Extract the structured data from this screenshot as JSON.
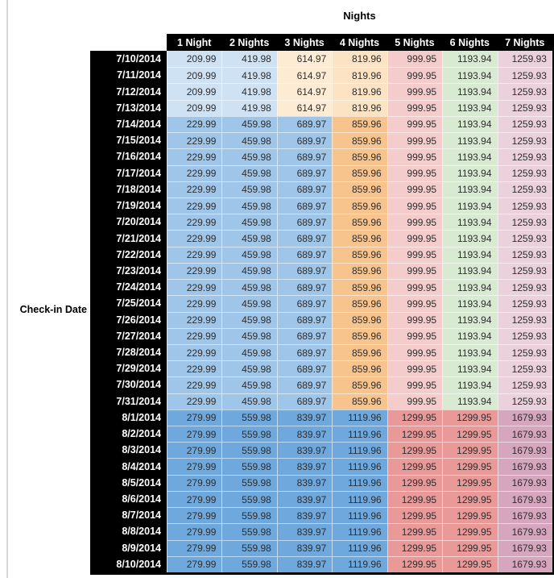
{
  "colors": {
    "header_bg": "#000000",
    "header_text": "#FFFFFF",
    "date_bg": "#000000",
    "date_text": "#FFFFFF",
    "cell_text": "#2E2E2E",
    "left_rule": "#D9D9D9",
    "bands": {
      "early_july": [
        "#CFE2F3",
        "#CFE2F3",
        "#FDEBD3",
        "#FBE3C4",
        "#F4CCCC",
        "#D9EAD3",
        "#EAD1DC"
      ],
      "mid_july": [
        "#9FC5E8",
        "#9FC5E8",
        "#9FC5E8",
        "#F8C48E",
        "#F4CCCC",
        "#D9EAD3",
        "#EAD1DC"
      ],
      "august": [
        "#6FA8DC",
        "#6FA8DC",
        "#6FA8DC",
        "#6FA8DC",
        "#EA9999",
        "#EA9999",
        "#D5A6BD"
      ]
    }
  },
  "chart_data": {
    "type": "table",
    "title": "Nights",
    "row_label": "Check-in Date",
    "columns": [
      "1 Night",
      "2 Nights",
      "3 Nights",
      "4 Nights",
      "5 Nights",
      "6 Nights",
      "7 Nights"
    ],
    "rows": [
      {
        "date": "7/10/2014",
        "band": "early_july",
        "values": [
          209.99,
          419.98,
          614.97,
          819.96,
          999.95,
          1193.94,
          1259.93
        ]
      },
      {
        "date": "7/11/2014",
        "band": "early_july",
        "values": [
          209.99,
          419.98,
          614.97,
          819.96,
          999.95,
          1193.94,
          1259.93
        ]
      },
      {
        "date": "7/12/2014",
        "band": "early_july",
        "values": [
          209.99,
          419.98,
          614.97,
          819.96,
          999.95,
          1193.94,
          1259.93
        ]
      },
      {
        "date": "7/13/2014",
        "band": "early_july",
        "values": [
          209.99,
          419.98,
          614.97,
          819.96,
          999.95,
          1193.94,
          1259.93
        ]
      },
      {
        "date": "7/14/2014",
        "band": "mid_july",
        "values": [
          229.99,
          459.98,
          689.97,
          859.96,
          999.95,
          1193.94,
          1259.93
        ]
      },
      {
        "date": "7/15/2014",
        "band": "mid_july",
        "values": [
          229.99,
          459.98,
          689.97,
          859.96,
          999.95,
          1193.94,
          1259.93
        ]
      },
      {
        "date": "7/16/2014",
        "band": "mid_july",
        "values": [
          229.99,
          459.98,
          689.97,
          859.96,
          999.95,
          1193.94,
          1259.93
        ]
      },
      {
        "date": "7/17/2014",
        "band": "mid_july",
        "values": [
          229.99,
          459.98,
          689.97,
          859.96,
          999.95,
          1193.94,
          1259.93
        ]
      },
      {
        "date": "7/18/2014",
        "band": "mid_july",
        "values": [
          229.99,
          459.98,
          689.97,
          859.96,
          999.95,
          1193.94,
          1259.93
        ]
      },
      {
        "date": "7/19/2014",
        "band": "mid_july",
        "values": [
          229.99,
          459.98,
          689.97,
          859.96,
          999.95,
          1193.94,
          1259.93
        ]
      },
      {
        "date": "7/20/2014",
        "band": "mid_july",
        "values": [
          229.99,
          459.98,
          689.97,
          859.96,
          999.95,
          1193.94,
          1259.93
        ]
      },
      {
        "date": "7/21/2014",
        "band": "mid_july",
        "values": [
          229.99,
          459.98,
          689.97,
          859.96,
          999.95,
          1193.94,
          1259.93
        ]
      },
      {
        "date": "7/22/2014",
        "band": "mid_july",
        "values": [
          229.99,
          459.98,
          689.97,
          859.96,
          999.95,
          1193.94,
          1259.93
        ]
      },
      {
        "date": "7/23/2014",
        "band": "mid_july",
        "values": [
          229.99,
          459.98,
          689.97,
          859.96,
          999.95,
          1193.94,
          1259.93
        ]
      },
      {
        "date": "7/24/2014",
        "band": "mid_july",
        "values": [
          229.99,
          459.98,
          689.97,
          859.96,
          999.95,
          1193.94,
          1259.93
        ]
      },
      {
        "date": "7/25/2014",
        "band": "mid_july",
        "values": [
          229.99,
          459.98,
          689.97,
          859.96,
          999.95,
          1193.94,
          1259.93
        ]
      },
      {
        "date": "7/26/2014",
        "band": "mid_july",
        "values": [
          229.99,
          459.98,
          689.97,
          859.96,
          999.95,
          1193.94,
          1259.93
        ]
      },
      {
        "date": "7/27/2014",
        "band": "mid_july",
        "values": [
          229.99,
          459.98,
          689.97,
          859.96,
          999.95,
          1193.94,
          1259.93
        ]
      },
      {
        "date": "7/28/2014",
        "band": "mid_july",
        "values": [
          229.99,
          459.98,
          689.97,
          859.96,
          999.95,
          1193.94,
          1259.93
        ]
      },
      {
        "date": "7/29/2014",
        "band": "mid_july",
        "values": [
          229.99,
          459.98,
          689.97,
          859.96,
          999.95,
          1193.94,
          1259.93
        ]
      },
      {
        "date": "7/30/2014",
        "band": "mid_july",
        "values": [
          229.99,
          459.98,
          689.97,
          859.96,
          999.95,
          1193.94,
          1259.93
        ]
      },
      {
        "date": "7/31/2014",
        "band": "mid_july",
        "values": [
          229.99,
          459.98,
          689.97,
          859.96,
          999.95,
          1193.94,
          1259.93
        ]
      },
      {
        "date": "8/1/2014",
        "band": "august",
        "values": [
          279.99,
          559.98,
          839.97,
          1119.96,
          1299.95,
          1299.95,
          1679.93
        ]
      },
      {
        "date": "8/2/2014",
        "band": "august",
        "values": [
          279.99,
          559.98,
          839.97,
          1119.96,
          1299.95,
          1299.95,
          1679.93
        ]
      },
      {
        "date": "8/3/2014",
        "band": "august",
        "values": [
          279.99,
          559.98,
          839.97,
          1119.96,
          1299.95,
          1299.95,
          1679.93
        ]
      },
      {
        "date": "8/4/2014",
        "band": "august",
        "values": [
          279.99,
          559.98,
          839.97,
          1119.96,
          1299.95,
          1299.95,
          1679.93
        ]
      },
      {
        "date": "8/5/2014",
        "band": "august",
        "values": [
          279.99,
          559.98,
          839.97,
          1119.96,
          1299.95,
          1299.95,
          1679.93
        ]
      },
      {
        "date": "8/6/2014",
        "band": "august",
        "values": [
          279.99,
          559.98,
          839.97,
          1119.96,
          1299.95,
          1299.95,
          1679.93
        ]
      },
      {
        "date": "8/7/2014",
        "band": "august",
        "values": [
          279.99,
          559.98,
          839.97,
          1119.96,
          1299.95,
          1299.95,
          1679.93
        ]
      },
      {
        "date": "8/8/2014",
        "band": "august",
        "values": [
          279.99,
          559.98,
          839.97,
          1119.96,
          1299.95,
          1299.95,
          1679.93
        ]
      },
      {
        "date": "8/9/2014",
        "band": "august",
        "values": [
          279.99,
          559.98,
          839.97,
          1119.96,
          1299.95,
          1299.95,
          1679.93
        ]
      },
      {
        "date": "8/10/2014",
        "band": "august",
        "values": [
          279.99,
          559.98,
          839.97,
          1119.96,
          1299.95,
          1299.95,
          1679.93
        ]
      }
    ]
  }
}
